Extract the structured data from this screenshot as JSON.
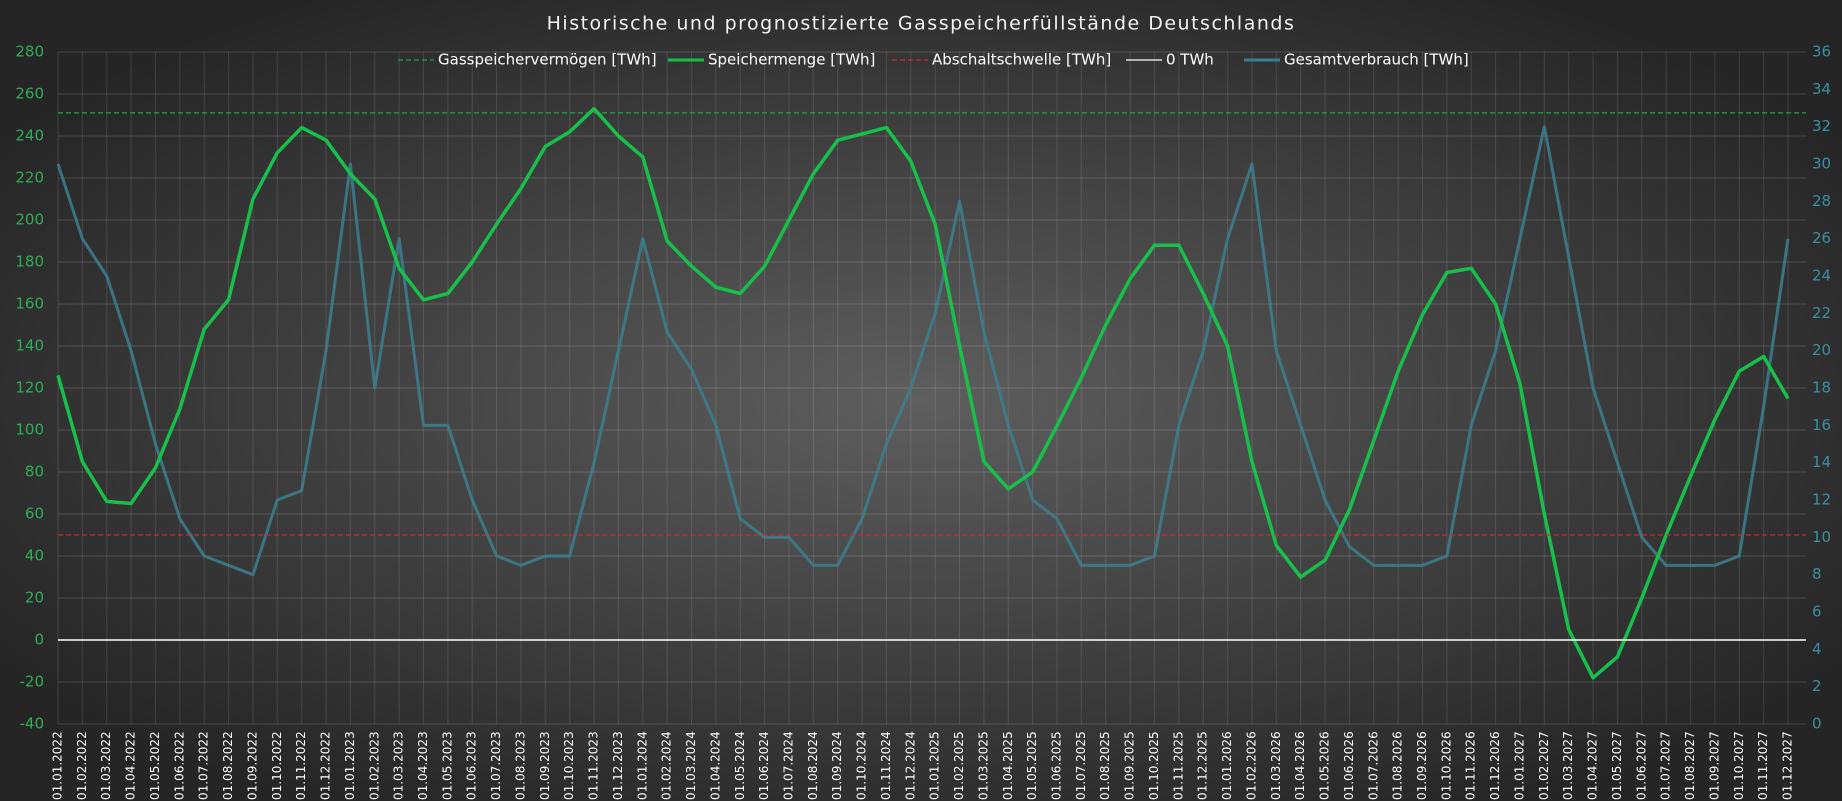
{
  "chart_data": {
    "type": "line",
    "title": "Historische und prognostizierte Gasspeicherfüllstände Deutschlands",
    "categories": [
      "01.01.2022",
      "01.02.2022",
      "01.03.2022",
      "01.04.2022",
      "01.05.2022",
      "01.06.2022",
      "01.07.2022",
      "01.08.2022",
      "01.09.2022",
      "01.10.2022",
      "01.11.2022",
      "01.12.2022",
      "01.01.2023",
      "01.02.2023",
      "01.03.2023",
      "01.04.2023",
      "01.05.2023",
      "01.06.2023",
      "01.07.2023",
      "01.08.2023",
      "01.09.2023",
      "01.10.2023",
      "01.11.2023",
      "01.12.2023",
      "01.01.2024",
      "01.02.2024",
      "01.03.2024",
      "01.04.2024",
      "01.05.2024",
      "01.06.2024",
      "01.07.2024",
      "01.08.2024",
      "01.09.2024",
      "01.10.2024",
      "01.11.2024",
      "01.12.2024",
      "01.01.2025",
      "01.02.2025",
      "01.03.2025",
      "01.04.2025",
      "01.05.2025",
      "01.06.2025",
      "01.07.2025",
      "01.08.2025",
      "01.09.2025",
      "01.10.2025",
      "01.11.2025",
      "01.12.2025",
      "01.01.2026",
      "01.02.2026",
      "01.03.2026",
      "01.04.2026",
      "01.05.2026",
      "01.06.2026",
      "01.07.2026",
      "01.08.2026",
      "01.09.2026",
      "01.10.2026",
      "01.11.2026",
      "01.12.2026",
      "01.01.2027",
      "01.02.2027",
      "01.03.2027",
      "01.04.2027",
      "01.05.2027",
      "01.06.2027",
      "01.07.2027",
      "01.08.2027",
      "01.09.2027",
      "01.10.2027",
      "01.11.2027",
      "01.12.2027"
    ],
    "series": [
      {
        "name": "Gasspeichervermögen [TWh]",
        "color": "#1fa846",
        "dash": true,
        "value": 251
      },
      {
        "name": "Speichermenge [TWh]",
        "color": "#17c04a",
        "values": [
          126,
          85,
          66,
          65,
          82,
          110,
          148,
          162,
          210,
          232,
          244,
          238,
          222,
          210,
          177,
          162,
          165,
          180,
          198,
          215,
          235,
          242,
          253,
          240,
          230,
          190,
          178,
          168,
          165,
          178,
          200,
          222,
          238,
          241,
          244,
          228,
          198,
          140,
          85,
          72,
          80,
          102,
          125,
          150,
          172,
          188,
          188,
          165,
          140,
          85,
          45,
          30,
          38,
          62,
          95,
          128,
          155,
          175,
          177,
          160,
          122,
          60,
          5,
          -18,
          -8,
          20,
          50,
          78,
          105,
          128,
          135,
          115
        ]
      },
      {
        "name": "Abschaltschwelle [TWh]",
        "color": "#d2282e",
        "dash": true,
        "value": 50
      },
      {
        "name": "0 TWh",
        "color": "#ffffff",
        "dash": false,
        "value": 0
      },
      {
        "name": "Gesamtverbrauch [TWh]",
        "color": "#3c7f8f",
        "axis": "y2",
        "values": [
          30,
          26,
          24,
          20,
          15,
          11,
          9,
          8.5,
          8,
          12,
          12.5,
          20,
          30,
          18,
          26,
          16,
          16,
          12,
          9,
          8.5,
          9,
          9,
          14,
          20,
          26,
          21,
          19,
          16,
          11,
          10,
          10,
          8.5,
          8.5,
          11,
          15,
          18,
          22,
          28,
          21,
          16,
          12,
          11,
          8.5,
          8.5,
          8.5,
          9,
          16,
          20,
          26,
          30,
          20,
          16,
          12,
          9.5,
          8.5,
          8.5,
          8.5,
          9,
          16,
          20,
          26,
          32,
          25,
          18,
          14,
          10,
          8.5,
          8.5,
          8.5,
          9,
          17,
          26
        ]
      }
    ],
    "ylim": [
      -40,
      280
    ],
    "yticks": [
      -40,
      -20,
      0,
      20,
      40,
      60,
      80,
      100,
      120,
      140,
      160,
      180,
      200,
      220,
      240,
      260,
      280
    ],
    "y2lim": [
      0,
      36
    ],
    "y2ticks": [
      0,
      2,
      4,
      6,
      8,
      10,
      12,
      14,
      16,
      18,
      20,
      22,
      24,
      26,
      28,
      30,
      32,
      34,
      36
    ],
    "grid": true,
    "legend": "top"
  }
}
